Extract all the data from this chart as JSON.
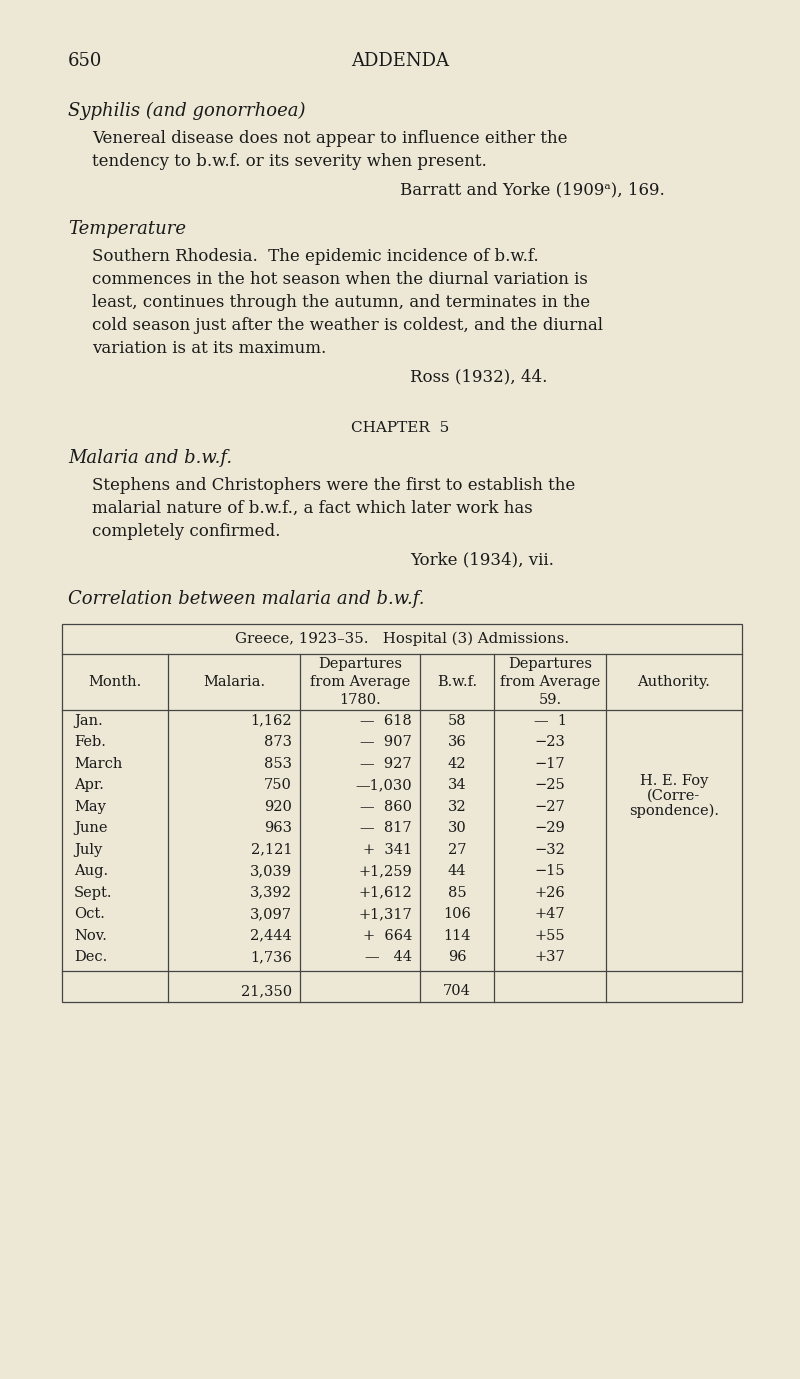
{
  "bg_color": "#ede8d5",
  "text_color": "#1a1a1a",
  "page_number": "650",
  "page_header": "ADDENDA",
  "section1_title": "Syphilis (and gonorrhoea)",
  "section1_lines": [
    "Venereal disease does not appear to influence either the",
    "tendency to b.w.f. or its severity when present."
  ],
  "section1_citation": "Barratt and Yorke (1909ᵃ), 169.",
  "section2_title": "Temperature",
  "section2_lines": [
    "Southern Rhodesia.  The epidemic incidence of b.w.f.",
    "commences in the hot season when the diurnal variation is",
    "least, continues through the autumn, and terminates in the",
    "cold season just after the weather is coldest, and the diurnal",
    "variation is at its maximum."
  ],
  "section2_citation": "Ross (1932), 44.",
  "chapter_header": "CHAPTER  5",
  "chapter_title": "Malaria and b.w.f.",
  "chapter_lines": [
    "Stephens and Christophers were the first to establish the",
    "malarial nature of b.w.f., a fact which later work has",
    "completely confirmed."
  ],
  "chapter_citation": "Yorke (1934), vii.",
  "table_italic": "Correlation between malaria and b.w.f.",
  "table_title": "Greece, 1923–35.   Hospital (3) Admissions.",
  "months": [
    "Jan.",
    "Feb.",
    "March",
    "Apr.",
    "May",
    "June",
    "July",
    "Aug.",
    "Sept.",
    "Oct.",
    "Nov.",
    "Dec."
  ],
  "malaria": [
    "1,162",
    "873",
    "853",
    "750",
    "920",
    "963",
    "2,121",
    "3,039",
    "3,392",
    "3,097",
    "2,444",
    "1,736"
  ],
  "dep_malaria": [
    "—  618",
    "—  907",
    "—  927",
    "—1,030",
    "—  860",
    "—  817",
    "+  341",
    "+1,259",
    "+1,612",
    "+1,317",
    "+  664",
    "—   44"
  ],
  "bwf": [
    "58",
    "36",
    "42",
    "34",
    "32",
    "30",
    "27",
    "44",
    "85",
    "106",
    "114",
    "96"
  ],
  "dep_bwf": [
    "—  1",
    "−23",
    "−17",
    "−25",
    "−27",
    "−29",
    "−32",
    "−15",
    "+26",
    "+47",
    "+55",
    "+37"
  ],
  "authority_lines": [
    "H. E. Foy",
    "(Corre-",
    "spondence)."
  ],
  "total_malaria": "21,350",
  "total_bwf": "704"
}
